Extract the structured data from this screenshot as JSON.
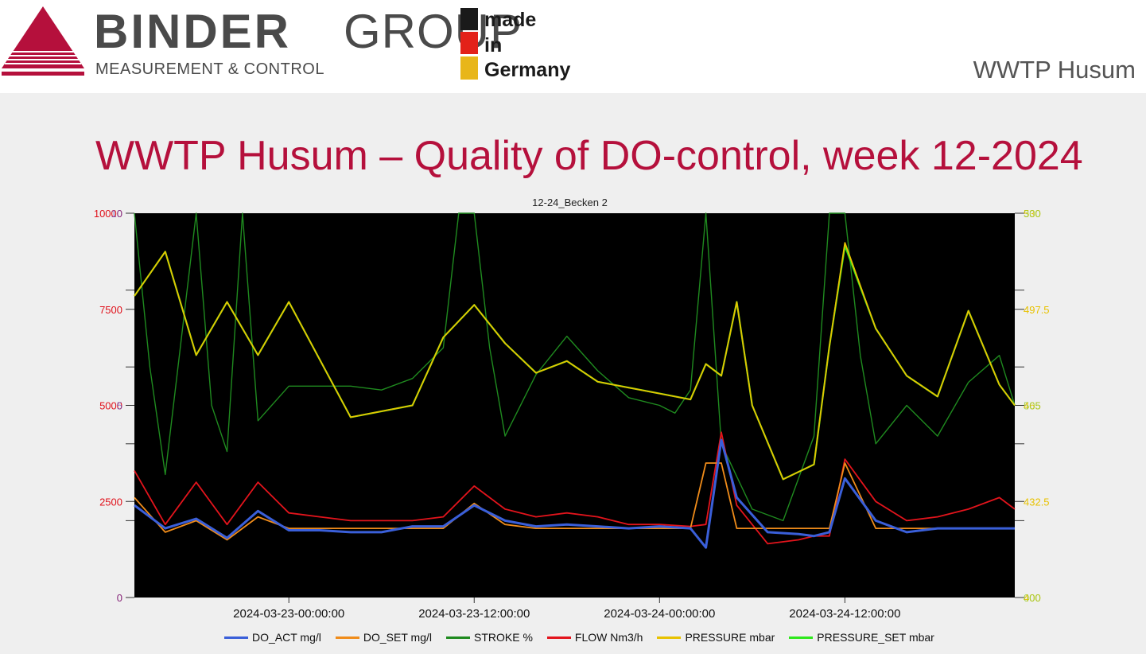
{
  "header": {
    "brand_strong": "BINDER",
    "brand_light": "GROUP",
    "brand_sub": "MEASUREMENT & CONTROL",
    "made_lines": [
      "made",
      "in",
      "Germany"
    ],
    "site_label": "WWTP Husum"
  },
  "slide": {
    "title": "WWTP Husum – Quality of DO-control, week 12-2024"
  },
  "colors": {
    "title": "#b5103c",
    "logo": "#b5103c",
    "plot_bg": "#000000",
    "left_axis": "#e0101a",
    "right_axis": "#e8c200"
  },
  "chart_data": {
    "type": "line",
    "title": "12-24_Becken 2",
    "x_range": [
      "2024-03-22 14:00",
      "2024-03-24 23:00"
    ],
    "x_ticks": [
      "2024-03-23-00:00:00",
      "2024-03-23-12:00:00",
      "2024-03-24-00:00:00",
      "2024-03-24-12:00:00"
    ],
    "left_axis": {
      "ticks": [
        "0",
        "2500",
        "5000",
        "7500",
        "10000"
      ],
      "overlap_ticks": [
        "0",
        "",
        "5",
        "",
        "10"
      ],
      "range": [
        0,
        10000
      ]
    },
    "right_axis": {
      "ticks": [
        "400",
        "432.5",
        "465",
        "497.5",
        "530"
      ],
      "overlap_ticks": [
        "000",
        "",
        "505",
        "",
        "300"
      ],
      "range": [
        400,
        530
      ]
    },
    "legend_position": "bottom",
    "series": [
      {
        "name": "DO_ACT mg/l",
        "color": "#3a5fd9",
        "axis": "left",
        "x": [
          "2024-03-22 14:00",
          "2024-03-22 16:00",
          "2024-03-22 18:00",
          "2024-03-22 20:00",
          "2024-03-22 22:00",
          "2024-03-23 00:00",
          "2024-03-23 02:00",
          "2024-03-23 04:00",
          "2024-03-23 06:00",
          "2024-03-23 08:00",
          "2024-03-23 10:00",
          "2024-03-23 12:00",
          "2024-03-23 14:00",
          "2024-03-23 16:00",
          "2024-03-23 18:00",
          "2024-03-23 20:00",
          "2024-03-23 22:00",
          "2024-03-24 00:00",
          "2024-03-24 02:00",
          "2024-03-24 03:00",
          "2024-03-24 04:00",
          "2024-03-24 05:00",
          "2024-03-24 07:00",
          "2024-03-24 09:00",
          "2024-03-24 10:00",
          "2024-03-24 11:00",
          "2024-03-24 12:00",
          "2024-03-24 14:00",
          "2024-03-24 16:00",
          "2024-03-24 18:00",
          "2024-03-24 20:00",
          "2024-03-24 23:00"
        ],
        "y": [
          2400,
          1800,
          2050,
          1550,
          2250,
          1750,
          1750,
          1700,
          1700,
          1850,
          1850,
          2400,
          2000,
          1850,
          1900,
          1850,
          1800,
          1850,
          1800,
          1300,
          4100,
          2600,
          1700,
          1650,
          1600,
          1700,
          3100,
          2000,
          1700,
          1800,
          1800,
          1800
        ]
      },
      {
        "name": "DO_SET mg/l",
        "color": "#f08c1a",
        "axis": "left",
        "x": [
          "2024-03-22 14:00",
          "2024-03-22 16:00",
          "2024-03-22 18:00",
          "2024-03-22 20:00",
          "2024-03-22 22:00",
          "2024-03-23 00:00",
          "2024-03-23 02:00",
          "2024-03-23 04:00",
          "2024-03-23 06:00",
          "2024-03-23 08:00",
          "2024-03-23 10:00",
          "2024-03-23 12:00",
          "2024-03-23 14:00",
          "2024-03-23 16:00",
          "2024-03-23 18:00",
          "2024-03-23 20:00",
          "2024-03-23 22:00",
          "2024-03-24 00:00",
          "2024-03-24 02:00",
          "2024-03-24 03:00",
          "2024-03-24 04:00",
          "2024-03-24 05:00",
          "2024-03-24 07:00",
          "2024-03-24 09:00",
          "2024-03-24 10:00",
          "2024-03-24 11:00",
          "2024-03-24 12:00",
          "2024-03-24 14:00",
          "2024-03-24 16:00",
          "2024-03-24 18:00",
          "2024-03-24 20:00",
          "2024-03-24 23:00"
        ],
        "y": [
          2600,
          1700,
          2000,
          1500,
          2100,
          1800,
          1800,
          1800,
          1800,
          1800,
          1800,
          2450,
          1900,
          1800,
          1800,
          1800,
          1800,
          1800,
          1800,
          3500,
          3500,
          1800,
          1800,
          1800,
          1800,
          1800,
          3500,
          1800,
          1800,
          1800,
          1800,
          1800
        ]
      },
      {
        "name": "STROKE %",
        "color": "#1f8a1f",
        "axis": "left",
        "x": [
          "2024-03-22 14:00",
          "2024-03-22 15:00",
          "2024-03-22 16:00",
          "2024-03-22 18:00",
          "2024-03-22 19:00",
          "2024-03-22 20:00",
          "2024-03-22 21:00",
          "2024-03-22 22:00",
          "2024-03-23 00:00",
          "2024-03-23 02:00",
          "2024-03-23 04:00",
          "2024-03-23 06:00",
          "2024-03-23 08:00",
          "2024-03-23 10:00",
          "2024-03-23 11:00",
          "2024-03-23 12:00",
          "2024-03-23 13:00",
          "2024-03-23 14:00",
          "2024-03-23 16:00",
          "2024-03-23 18:00",
          "2024-03-23 20:00",
          "2024-03-23 22:00",
          "2024-03-24 00:00",
          "2024-03-24 01:00",
          "2024-03-24 02:00",
          "2024-03-24 03:00",
          "2024-03-24 04:00",
          "2024-03-24 06:00",
          "2024-03-24 08:00",
          "2024-03-24 10:00",
          "2024-03-24 11:00",
          "2024-03-24 12:00",
          "2024-03-24 13:00",
          "2024-03-24 14:00",
          "2024-03-24 16:00",
          "2024-03-24 18:00",
          "2024-03-24 20:00",
          "2024-03-24 22:00",
          "2024-03-24 23:00"
        ],
        "y": [
          10000,
          6000,
          3200,
          10000,
          5000,
          3800,
          10000,
          4600,
          5500,
          5500,
          5500,
          5400,
          5700,
          6500,
          10000,
          10000,
          6500,
          4200,
          5800,
          6800,
          5900,
          5200,
          5000,
          4800,
          5400,
          10000,
          4000,
          2300,
          2000,
          4200,
          10000,
          10000,
          6300,
          4000,
          5000,
          4200,
          5600,
          6300,
          5000
        ]
      },
      {
        "name": "FLOW Nm3/h",
        "color": "#e3141c",
        "axis": "left",
        "x": [
          "2024-03-22 14:00",
          "2024-03-22 16:00",
          "2024-03-22 18:00",
          "2024-03-22 20:00",
          "2024-03-22 22:00",
          "2024-03-23 00:00",
          "2024-03-23 02:00",
          "2024-03-23 04:00",
          "2024-03-23 06:00",
          "2024-03-23 08:00",
          "2024-03-23 10:00",
          "2024-03-23 12:00",
          "2024-03-23 14:00",
          "2024-03-23 16:00",
          "2024-03-23 18:00",
          "2024-03-23 20:00",
          "2024-03-23 22:00",
          "2024-03-24 00:00",
          "2024-03-24 02:00",
          "2024-03-24 03:00",
          "2024-03-24 04:00",
          "2024-03-24 05:00",
          "2024-03-24 07:00",
          "2024-03-24 09:00",
          "2024-03-24 10:00",
          "2024-03-24 11:00",
          "2024-03-24 12:00",
          "2024-03-24 14:00",
          "2024-03-24 16:00",
          "2024-03-24 18:00",
          "2024-03-24 20:00",
          "2024-03-24 22:00",
          "2024-03-24 23:00"
        ],
        "y": [
          3300,
          1900,
          3000,
          1900,
          3000,
          2200,
          2100,
          2000,
          2000,
          2000,
          2100,
          2900,
          2300,
          2100,
          2200,
          2100,
          1900,
          1900,
          1850,
          1900,
          4300,
          2400,
          1400,
          1500,
          1600,
          1600,
          3600,
          2500,
          2000,
          2100,
          2300,
          2600,
          2300
        ]
      },
      {
        "name": "PRESSURE mbar",
        "color": "#e8c200",
        "axis": "right",
        "x": [
          "2024-03-22 14:00",
          "2024-03-22 16:00",
          "2024-03-22 18:00",
          "2024-03-22 20:00",
          "2024-03-22 22:00",
          "2024-03-23 00:00",
          "2024-03-23 04:00",
          "2024-03-23 08:00",
          "2024-03-23 10:00",
          "2024-03-23 12:00",
          "2024-03-23 14:00",
          "2024-03-23 16:00",
          "2024-03-23 18:00",
          "2024-03-23 20:00",
          "2024-03-23 22:00",
          "2024-03-24 00:00",
          "2024-03-24 02:00",
          "2024-03-24 03:00",
          "2024-03-24 04:00",
          "2024-03-24 05:00",
          "2024-03-24 06:00",
          "2024-03-24 08:00",
          "2024-03-24 10:00",
          "2024-03-24 11:00",
          "2024-03-24 12:00",
          "2024-03-24 14:00",
          "2024-03-24 16:00",
          "2024-03-24 18:00",
          "2024-03-24 20:00",
          "2024-03-24 22:00",
          "2024-03-24 23:00"
        ],
        "y": [
          502,
          517,
          482,
          500,
          482,
          500,
          461,
          465,
          488,
          499,
          486,
          476,
          480,
          473,
          471,
          469,
          467,
          479,
          475,
          500,
          465,
          440,
          445,
          485,
          520,
          491,
          475,
          468,
          497,
          472,
          465
        ]
      },
      {
        "name": "PRESSURE_SET mbar",
        "color": "#2ee81c",
        "axis": "right",
        "x": [
          "2024-03-22 14:00",
          "2024-03-22 16:00",
          "2024-03-22 18:00",
          "2024-03-22 20:00",
          "2024-03-22 22:00",
          "2024-03-23 00:00",
          "2024-03-23 04:00",
          "2024-03-23 08:00",
          "2024-03-23 10:00",
          "2024-03-23 12:00",
          "2024-03-23 14:00",
          "2024-03-23 16:00",
          "2024-03-23 18:00",
          "2024-03-23 20:00",
          "2024-03-23 22:00",
          "2024-03-24 00:00",
          "2024-03-24 02:00",
          "2024-03-24 03:00",
          "2024-03-24 04:00",
          "2024-03-24 05:00",
          "2024-03-24 06:00",
          "2024-03-24 08:00",
          "2024-03-24 10:00",
          "2024-03-24 11:00",
          "2024-03-24 12:00",
          "2024-03-24 14:00",
          "2024-03-24 16:00",
          "2024-03-24 18:00",
          "2024-03-24 20:00",
          "2024-03-24 22:00",
          "2024-03-24 23:00"
        ],
        "y": [
          502,
          517,
          482,
          500,
          482,
          500,
          461,
          465,
          488,
          499,
          486,
          476,
          480,
          473,
          471,
          469,
          467,
          479,
          475,
          500,
          465,
          440,
          445,
          485,
          519,
          491,
          475,
          468,
          497,
          472,
          465
        ]
      }
    ]
  }
}
